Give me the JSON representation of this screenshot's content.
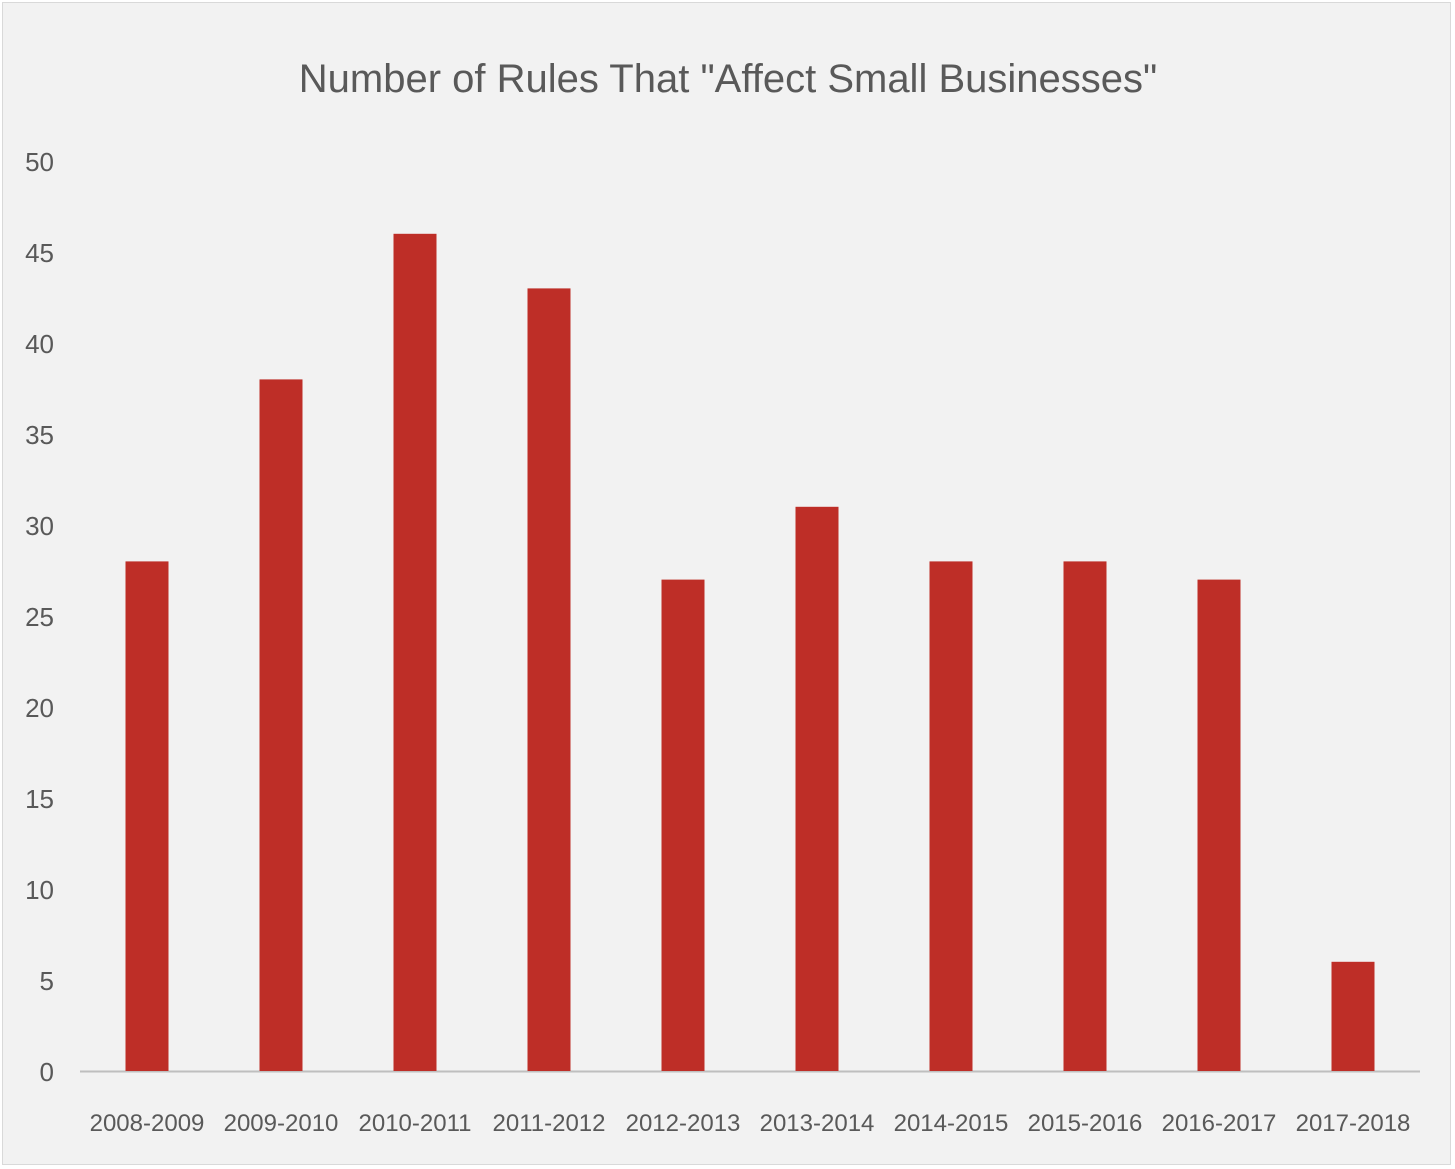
{
  "chart_data": {
    "type": "bar",
    "title": "Number of Rules That \"Affect Small Businesses\"",
    "xlabel": "",
    "ylabel": "",
    "categories": [
      "2008-2009",
      "2009-2010",
      "2010-2011",
      "2011-2012",
      "2012-2013",
      "2013-2014",
      "2014-2015",
      "2015-2016",
      "2016-2017",
      "2017-2018"
    ],
    "values": [
      28,
      38,
      46,
      43,
      27,
      31,
      28,
      28,
      27,
      6
    ],
    "ylim": [
      0,
      50
    ],
    "yticks": [
      "0",
      "5",
      "10",
      "15",
      "20",
      "25",
      "30",
      "35",
      "40",
      "45",
      "50"
    ],
    "grid": false,
    "legend": "none",
    "colors": {
      "bar": "#be2e27",
      "background": "#f2f2f2",
      "text": "#595959",
      "axis": "#bfbfbf"
    }
  }
}
